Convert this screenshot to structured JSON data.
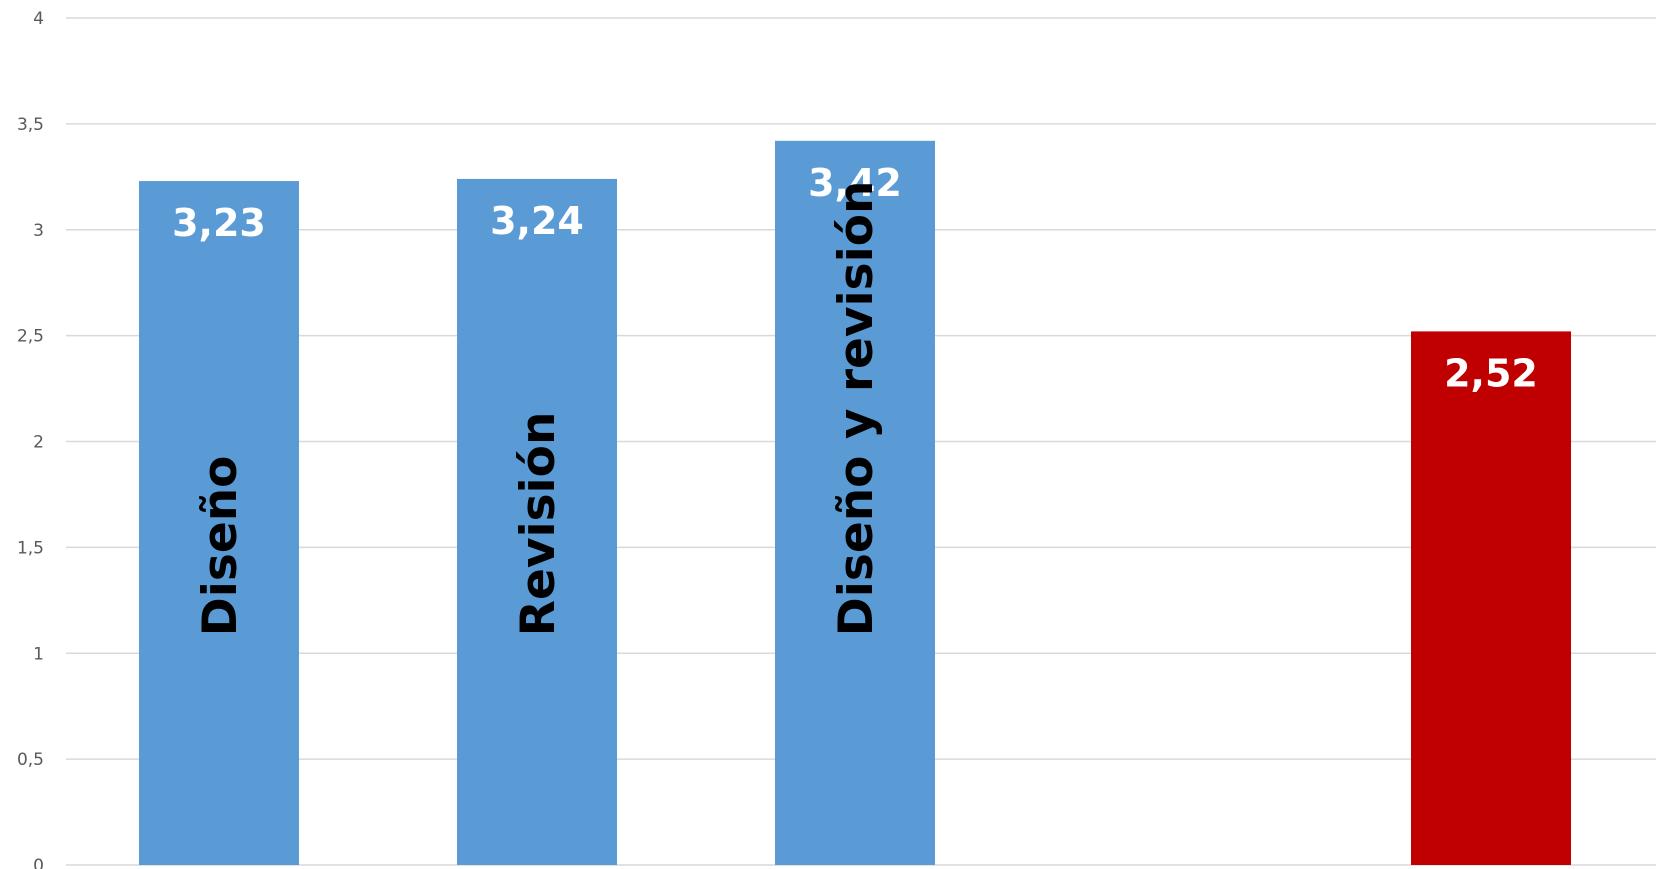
{
  "chart_data": {
    "type": "bar",
    "categories": [
      "Diseño",
      "Revisión",
      "Diseño y revisión",
      "",
      ""
    ],
    "values": [
      3.23,
      3.24,
      3.42,
      null,
      2.52
    ],
    "value_labels": [
      "3,23",
      "3,24",
      "3,42",
      "",
      "2,52"
    ],
    "bar_colors": [
      "#5b9bd5",
      "#5b9bd5",
      "#5b9bd5",
      "",
      "#c00000"
    ],
    "ylim": [
      0,
      4
    ],
    "yticks": [
      0,
      0.5,
      1,
      1.5,
      2,
      2.5,
      3,
      3.5,
      4
    ],
    "ytick_labels": [
      "0",
      "0,5",
      "1",
      "1,5",
      "2",
      "2,5",
      "3",
      "3,5",
      "4"
    ],
    "grid": true,
    "legend": "none",
    "title": "",
    "xlabel": "",
    "ylabel": ""
  }
}
